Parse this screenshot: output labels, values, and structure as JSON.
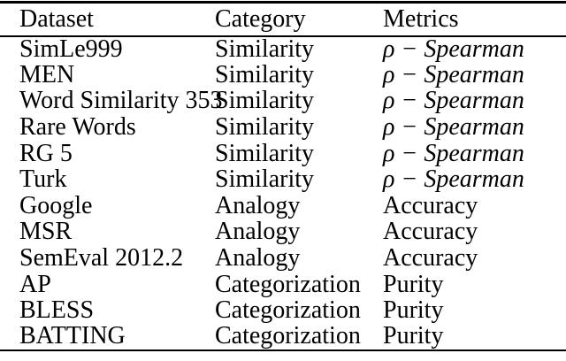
{
  "colors": {
    "text": "#000000",
    "rule": "#000000",
    "background": "#ffffff"
  },
  "table": {
    "columns": [
      "Dataset",
      "Category",
      "Metrics"
    ],
    "rows": [
      {
        "dataset": "SimLe999",
        "category": "Similarity",
        "metric": "ρ − Spearman",
        "metric_math": true
      },
      {
        "dataset": "MEN",
        "category": "Similarity",
        "metric": "ρ − Spearman",
        "metric_math": true
      },
      {
        "dataset": "Word Similarity 353",
        "category": "Similarity",
        "metric": "ρ − Spearman",
        "metric_math": true
      },
      {
        "dataset": "Rare Words",
        "category": "Similarity",
        "metric": "ρ − Spearman",
        "metric_math": true
      },
      {
        "dataset": "RG 5",
        "category": "Similarity",
        "metric": "ρ − Spearman",
        "metric_math": true
      },
      {
        "dataset": "Turk",
        "category": "Similarity",
        "metric": "ρ − Spearman",
        "metric_math": true
      },
      {
        "dataset": "Google",
        "category": "Analogy",
        "metric": "Accuracy",
        "metric_math": false
      },
      {
        "dataset": "MSR",
        "category": "Analogy",
        "metric": "Accuracy",
        "metric_math": false
      },
      {
        "dataset": "SemEval 2012.2",
        "category": "Analogy",
        "metric": "Accuracy",
        "metric_math": false
      },
      {
        "dataset": "AP",
        "category": "Categorization",
        "metric": "Purity",
        "metric_math": false
      },
      {
        "dataset": "BLESS",
        "category": "Categorization",
        "metric": "Purity",
        "metric_math": false
      },
      {
        "dataset": "BATTING",
        "category": "Categorization",
        "metric": "Purity",
        "metric_math": false
      }
    ]
  }
}
